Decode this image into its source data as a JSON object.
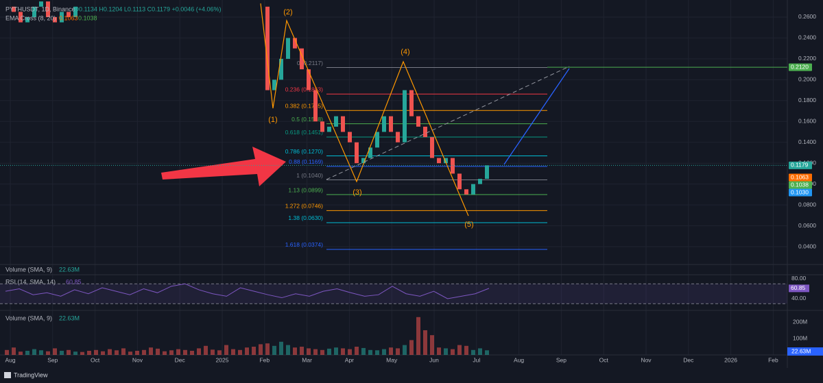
{
  "header": {
    "symbol": "PYTHUSDT, 1D, Binance",
    "ohlc": "O0.1134 H0.1204 L0.1113 C0.1179 +0.0046 (+4.06%)",
    "ema_name": "EMA Cross (8, 20)",
    "ema_fast": "0.1063",
    "ema_slow": "0.1038"
  },
  "chart_data": {
    "type": "candlestick",
    "categories": [
      null,
      null,
      null,
      null,
      null,
      null,
      null,
      null,
      null,
      null,
      null,
      null,
      null,
      null,
      null,
      null,
      null,
      null,
      null,
      null,
      null,
      null,
      null,
      null,
      null,
      null,
      null,
      null,
      null,
      null,
      null,
      null,
      null,
      null,
      null,
      null,
      null,
      null,
      null,
      null,
      null,
      null,
      null,
      null,
      null,
      null,
      null,
      null,
      null,
      null,
      null,
      null,
      null,
      null,
      null,
      null,
      null,
      null,
      null,
      null,
      null,
      null,
      null,
      null,
      null,
      null,
      null,
      null,
      null,
      null,
      null
    ],
    "values": [
      0.27,
      0.265,
      0.255,
      0.26,
      0.27,
      0.275,
      0.26,
      0.255,
      0.265,
      0.26,
      0.27,
      null,
      null,
      null,
      null,
      null,
      null,
      null,
      null,
      null,
      null,
      null,
      null,
      null,
      null,
      null,
      null,
      null,
      null,
      null,
      null,
      null,
      null,
      null,
      null,
      null,
      null,
      0.27,
      0.19,
      0.2,
      0.22,
      0.24,
      0.23,
      0.21,
      0.19,
      0.16,
      0.15,
      0.155,
      0.165,
      0.15,
      0.14,
      0.12,
      0.125,
      0.135,
      0.15,
      0.165,
      0.15,
      0.14,
      0.19,
      0.165,
      0.155,
      0.145,
      0.125,
      0.12,
      0.125,
      0.11,
      0.095,
      0.09,
      0.1,
      0.105,
      0.1179
    ],
    "up_color": "#26a69a",
    "down_color": "#ef5350",
    "ylim": [
      0.0236,
      0.2764
    ],
    "yticks": [
      {
        "value": 0.26,
        "label": "0.2600"
      },
      {
        "value": 0.24,
        "label": "0.2400"
      },
      {
        "value": 0.22,
        "label": "0.2200"
      },
      {
        "value": 0.2,
        "label": "0.2000"
      },
      {
        "value": 0.18,
        "label": "0.1800"
      },
      {
        "value": 0.16,
        "label": "0.1600"
      },
      {
        "value": 0.14,
        "label": "0.1400"
      },
      {
        "value": 0.12,
        "label": "0.1200"
      },
      {
        "value": 0.1,
        "label": "0.1000"
      },
      {
        "value": 0.08,
        "label": "0.0800"
      },
      {
        "value": 0.06,
        "label": "0.0600"
      },
      {
        "value": 0.04,
        "label": "0.0400"
      }
    ],
    "xticks": [
      {
        "value": "2024-08",
        "label": "Aug"
      },
      {
        "value": "2024-09",
        "label": "Sep"
      },
      {
        "value": "2024-10",
        "label": "Oct"
      },
      {
        "value": "2024-11",
        "label": "Nov"
      },
      {
        "value": "2024-12",
        "label": "Dec"
      },
      {
        "value": "2025-01",
        "label": "2025"
      },
      {
        "value": "2025-02",
        "label": "Feb"
      },
      {
        "value": "2025-03",
        "label": "Mar"
      },
      {
        "value": "2025-04",
        "label": "Apr"
      },
      {
        "value": "2025-05",
        "label": "May"
      },
      {
        "value": "2025-06",
        "label": "Jun"
      },
      {
        "value": "2025-07",
        "label": "Jul"
      },
      {
        "value": "2025-08",
        "label": "Aug"
      },
      {
        "value": "2025-09",
        "label": "Sep"
      },
      {
        "value": "2025-10",
        "label": "Oct"
      },
      {
        "value": "2025-11",
        "label": "Nov"
      },
      {
        "value": "2025-12",
        "label": "Dec"
      },
      {
        "value": "2026-01",
        "label": "2026"
      },
      {
        "value": "2026-02",
        "label": "Feb"
      }
    ],
    "grid": true,
    "fib_levels": [
      {
        "label": "0 (0.2117)",
        "value": 0.2117,
        "color": "#787b86"
      },
      {
        "label": "0.236 (0.1863)",
        "value": 0.1863,
        "color": "#f23645"
      },
      {
        "label": "0.382 (0.1705)",
        "value": 0.1705,
        "color": "#ff9800"
      },
      {
        "label": "0.5 (0.1578)",
        "value": 0.1578,
        "color": "#4caf50"
      },
      {
        "label": "0.618 (0.1451)",
        "value": 0.1451,
        "color": "#089981"
      },
      {
        "label": "0.786 (0.1270)",
        "value": 0.127,
        "color": "#00bcd4"
      },
      {
        "label": "0.88 (0.1169)",
        "value": 0.1169,
        "color": "#2962ff"
      },
      {
        "label": "1 (0.1040)",
        "value": 0.104,
        "color": "#787b86"
      },
      {
        "label": "1.13 (0.0899)",
        "value": 0.0899,
        "color": "#4caf50"
      },
      {
        "label": "1.272 (0.0746)",
        "value": 0.0746,
        "color": "#ff9800"
      },
      {
        "label": "1.38 (0.0630)",
        "value": 0.063,
        "color": "#00bcd4"
      },
      {
        "label": "1.618 (0.0374)",
        "value": 0.0374,
        "color": "#2962ff"
      }
    ],
    "price_tags": [
      {
        "label": "0.2120",
        "value": 0.212,
        "color": "#4caf50"
      },
      {
        "label": "0.1179",
        "value": 0.1179,
        "color": "#26a69a"
      },
      {
        "label": "0.1063",
        "value": 0.1063,
        "color": "#ff6d00"
      },
      {
        "label": "0.1038",
        "value": 0.1038,
        "color": "#4caf50"
      },
      {
        "label": "0.1030",
        "value": 0.103,
        "color": "#2196f3"
      }
    ],
    "waves": [
      "(1)",
      "(2)",
      "(3)",
      "(4)",
      "(5)"
    ],
    "volume_title": "Volume (SMA, 9)",
    "volume_sma": "22.63M"
  },
  "rsi": {
    "type": "line",
    "title": "RSI (14, SMA, 14)",
    "color": "#7e57c2",
    "values": [
      55,
      60,
      48,
      52,
      45,
      58,
      50,
      62,
      55,
      48,
      60,
      52,
      65,
      70,
      58,
      50,
      45,
      62,
      55,
      48,
      42,
      50,
      45,
      55,
      60,
      52,
      45,
      48,
      65,
      50,
      45,
      55,
      40,
      45,
      50,
      60.85
    ],
    "ylim": [
      20.7,
      84.1
    ],
    "yticks": [
      {
        "value": 80,
        "label": "80.00"
      },
      {
        "value": 40,
        "label": "40.00"
      }
    ],
    "band": [
      30,
      70
    ]
  },
  "volume": {
    "type": "bar",
    "title": "Volume (SMA, 9)",
    "sma_label": "22.63M",
    "color": "#2196f3",
    "values": [
      30,
      45,
      20,
      25,
      35,
      28,
      22,
      40,
      25,
      30,
      20,
      18,
      25,
      30,
      22,
      35,
      28,
      40,
      20,
      25,
      30,
      45,
      38,
      22,
      28,
      35,
      30,
      25,
      40,
      55,
      32,
      28,
      60,
      35,
      30,
      45,
      50,
      65,
      70,
      55,
      80,
      60,
      45,
      50,
      40,
      35,
      30,
      38,
      45,
      40,
      35,
      50,
      42,
      30,
      28,
      35,
      45,
      40,
      60,
      90,
      230,
      150,
      120,
      45,
      40,
      35,
      60,
      55,
      30,
      40,
      28
    ],
    "ylim": [
      0,
      250
    ],
    "yticks": [
      {
        "value": 200,
        "label": "200M"
      },
      {
        "value": 100,
        "label": "100M"
      }
    ]
  },
  "footer": {
    "brand": "TradingView"
  }
}
